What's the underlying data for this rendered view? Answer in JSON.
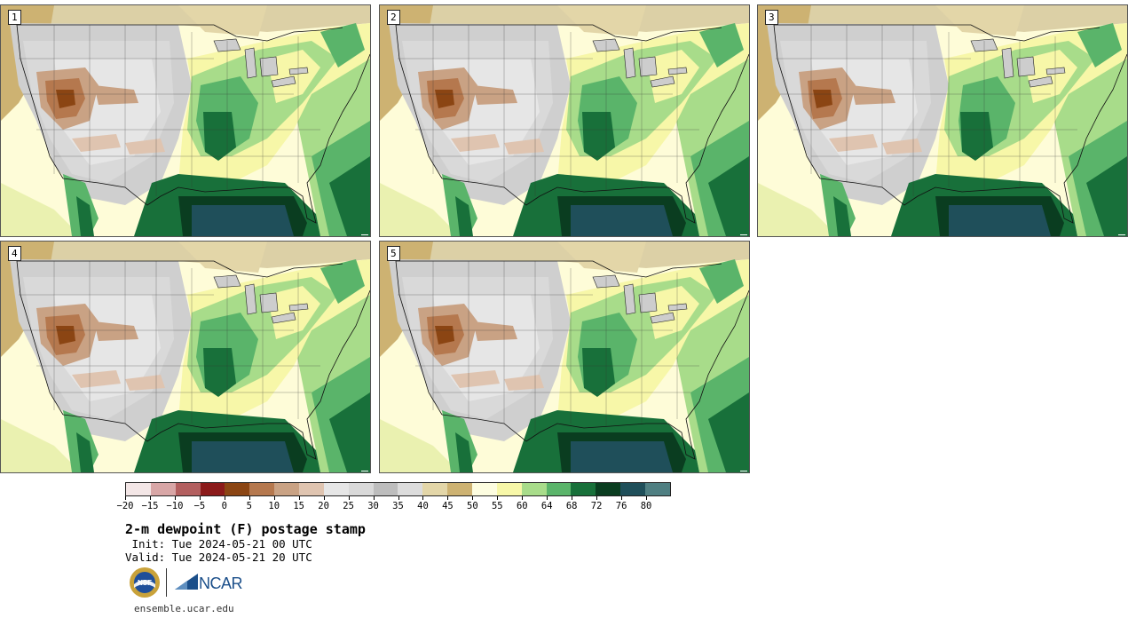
{
  "panels": [
    {
      "label": "1"
    },
    {
      "label": "2"
    },
    {
      "label": "3"
    },
    {
      "label": "4"
    },
    {
      "label": "5"
    }
  ],
  "colorbar": {
    "colors": [
      "#f3e6e6",
      "#d8a6a6",
      "#b35f5f",
      "#8b1a1a",
      "#8b4513",
      "#b5784e",
      "#c9a284",
      "#dfc4b0",
      "#e6e6e6",
      "#d9d9d9",
      "#bdbdbd",
      "#dcdcdc",
      "#e3d6a8",
      "#cdb272",
      "#fdfde0",
      "#f7f7a8",
      "#a8dc8a",
      "#5ab46a",
      "#18703a",
      "#0a3d20",
      "#1f4f5a",
      "#4f7f82"
    ],
    "tick_labels": [
      "−20",
      "−15",
      "−10",
      "−5",
      "0",
      "5",
      "10",
      "15",
      "20",
      "25",
      "30",
      "35",
      "40",
      "45",
      "50",
      "55",
      "60",
      "64",
      "68",
      "72",
      "76",
      "80"
    ]
  },
  "title": "2-m dewpoint (F) postage stamp",
  "init": " Init: Tue 2024-05-21 00 UTC",
  "valid": "Valid: Tue 2024-05-21 20 UTC",
  "logos": {
    "nsf": "NSF",
    "ncar": "NCAR"
  },
  "url": "ensemble.ucar.edu"
}
